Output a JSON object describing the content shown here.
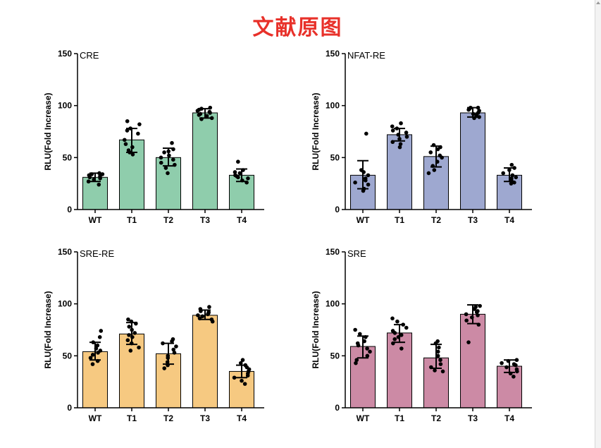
{
  "page": {
    "title": "文献原图"
  },
  "chart_data": [
    {
      "type": "bar",
      "panel": "CRE",
      "title": "CRE",
      "xlabel": "",
      "ylabel": "RLU(Fold Increase)",
      "ylim": [
        0,
        150
      ],
      "yticks": [
        0,
        50,
        100,
        150
      ],
      "bar_color": "#8fcdac",
      "categories": [
        "WT",
        "T1",
        "T2",
        "T3",
        "T4"
      ],
      "values": [
        31,
        67,
        50,
        93,
        33
      ],
      "errors": [
        [
          27,
          35
        ],
        [
          55,
          78
        ],
        [
          42,
          59
        ],
        [
          88,
          97
        ],
        [
          27,
          39
        ]
      ],
      "points": [
        [
          24,
          27,
          29,
          30,
          31,
          32,
          33,
          34,
          34,
          35
        ],
        [
          53,
          55,
          57,
          60,
          63,
          67,
          73,
          76,
          78,
          82,
          85
        ],
        [
          35,
          40,
          43,
          45,
          48,
          50,
          52,
          55,
          56,
          58,
          64
        ],
        [
          87,
          88,
          90,
          91,
          92,
          93,
          94,
          95,
          96,
          97,
          98
        ],
        [
          26,
          28,
          30,
          31,
          32,
          33,
          35,
          36,
          38,
          46
        ]
      ]
    },
    {
      "type": "bar",
      "panel": "NFAT-RE",
      "title": "NFAT-RE",
      "xlabel": "",
      "ylabel": "RLU(Fold Increase)",
      "ylim": [
        0,
        150
      ],
      "yticks": [
        0,
        50,
        100,
        150
      ],
      "bar_color": "#9ea8d0",
      "categories": [
        "WT",
        "T1",
        "T2",
        "T3",
        "T4"
      ],
      "values": [
        33,
        72,
        51,
        93,
        33
      ],
      "errors": [
        [
          20,
          47
        ],
        [
          66,
          78
        ],
        [
          41,
          61
        ],
        [
          89,
          98
        ],
        [
          27,
          40
        ]
      ],
      "points": [
        [
          18,
          20,
          24,
          26,
          28,
          30,
          33,
          36,
          38,
          73
        ],
        [
          60,
          63,
          65,
          68,
          70,
          72,
          74,
          76,
          78,
          80,
          83
        ],
        [
          35,
          38,
          42,
          46,
          50,
          52,
          55,
          58,
          60,
          62
        ],
        [
          88,
          89,
          90,
          91,
          92,
          93,
          95,
          96,
          97,
          98,
          98
        ],
        [
          25,
          26,
          28,
          30,
          31,
          33,
          35,
          38,
          40,
          43
        ]
      ]
    },
    {
      "type": "bar",
      "panel": "SRE-RE",
      "title": "SRE-RE",
      "xlabel": "",
      "ylabel": "RLU(Fold Increase)",
      "ylim": [
        0,
        150
      ],
      "yticks": [
        0,
        50,
        100,
        150
      ],
      "bar_color": "#f6c981",
      "categories": [
        "WT",
        "T1",
        "T2",
        "T3",
        "T4"
      ],
      "values": [
        54,
        71,
        52,
        89,
        35
      ],
      "errors": [
        [
          46,
          63
        ],
        [
          61,
          82
        ],
        [
          42,
          62
        ],
        [
          85,
          94
        ],
        [
          29,
          41
        ]
      ],
      "points": [
        [
          42,
          45,
          48,
          51,
          53,
          55,
          57,
          60,
          63,
          68,
          74
        ],
        [
          55,
          58,
          62,
          65,
          68,
          70,
          72,
          75,
          78,
          81,
          83,
          85
        ],
        [
          38,
          41,
          44,
          48,
          50,
          53,
          56,
          59,
          62,
          64,
          66
        ],
        [
          83,
          85,
          86,
          88,
          89,
          90,
          91,
          92,
          93,
          95,
          97
        ],
        [
          23,
          26,
          29,
          31,
          33,
          35,
          37,
          39,
          41,
          43,
          46
        ]
      ]
    },
    {
      "type": "bar",
      "panel": "SRE",
      "title": "SRE",
      "xlabel": "",
      "ylabel": "RLU(Fold Increase)",
      "ylim": [
        0,
        150
      ],
      "yticks": [
        0,
        50,
        100,
        150
      ],
      "bar_color": "#cc8aa5",
      "categories": [
        "WT",
        "T1",
        "T2",
        "T3",
        "T4"
      ],
      "values": [
        59,
        72,
        48,
        90,
        40
      ],
      "errors": [
        [
          48,
          69
        ],
        [
          63,
          80
        ],
        [
          38,
          61
        ],
        [
          81,
          99
        ],
        [
          34,
          46
        ]
      ],
      "points": [
        [
          43,
          46,
          50,
          54,
          57,
          60,
          62,
          64,
          68,
          71,
          75
        ],
        [
          57,
          62,
          66,
          68,
          70,
          72,
          74,
          77,
          80,
          83,
          86
        ],
        [
          35,
          36,
          39,
          42,
          46,
          50,
          54,
          58,
          62,
          64
        ],
        [
          63,
          80,
          84,
          87,
          89,
          90,
          92,
          93,
          95,
          97,
          98
        ],
        [
          30,
          33,
          35,
          37,
          39,
          41,
          42,
          43,
          45,
          46
        ]
      ]
    }
  ]
}
